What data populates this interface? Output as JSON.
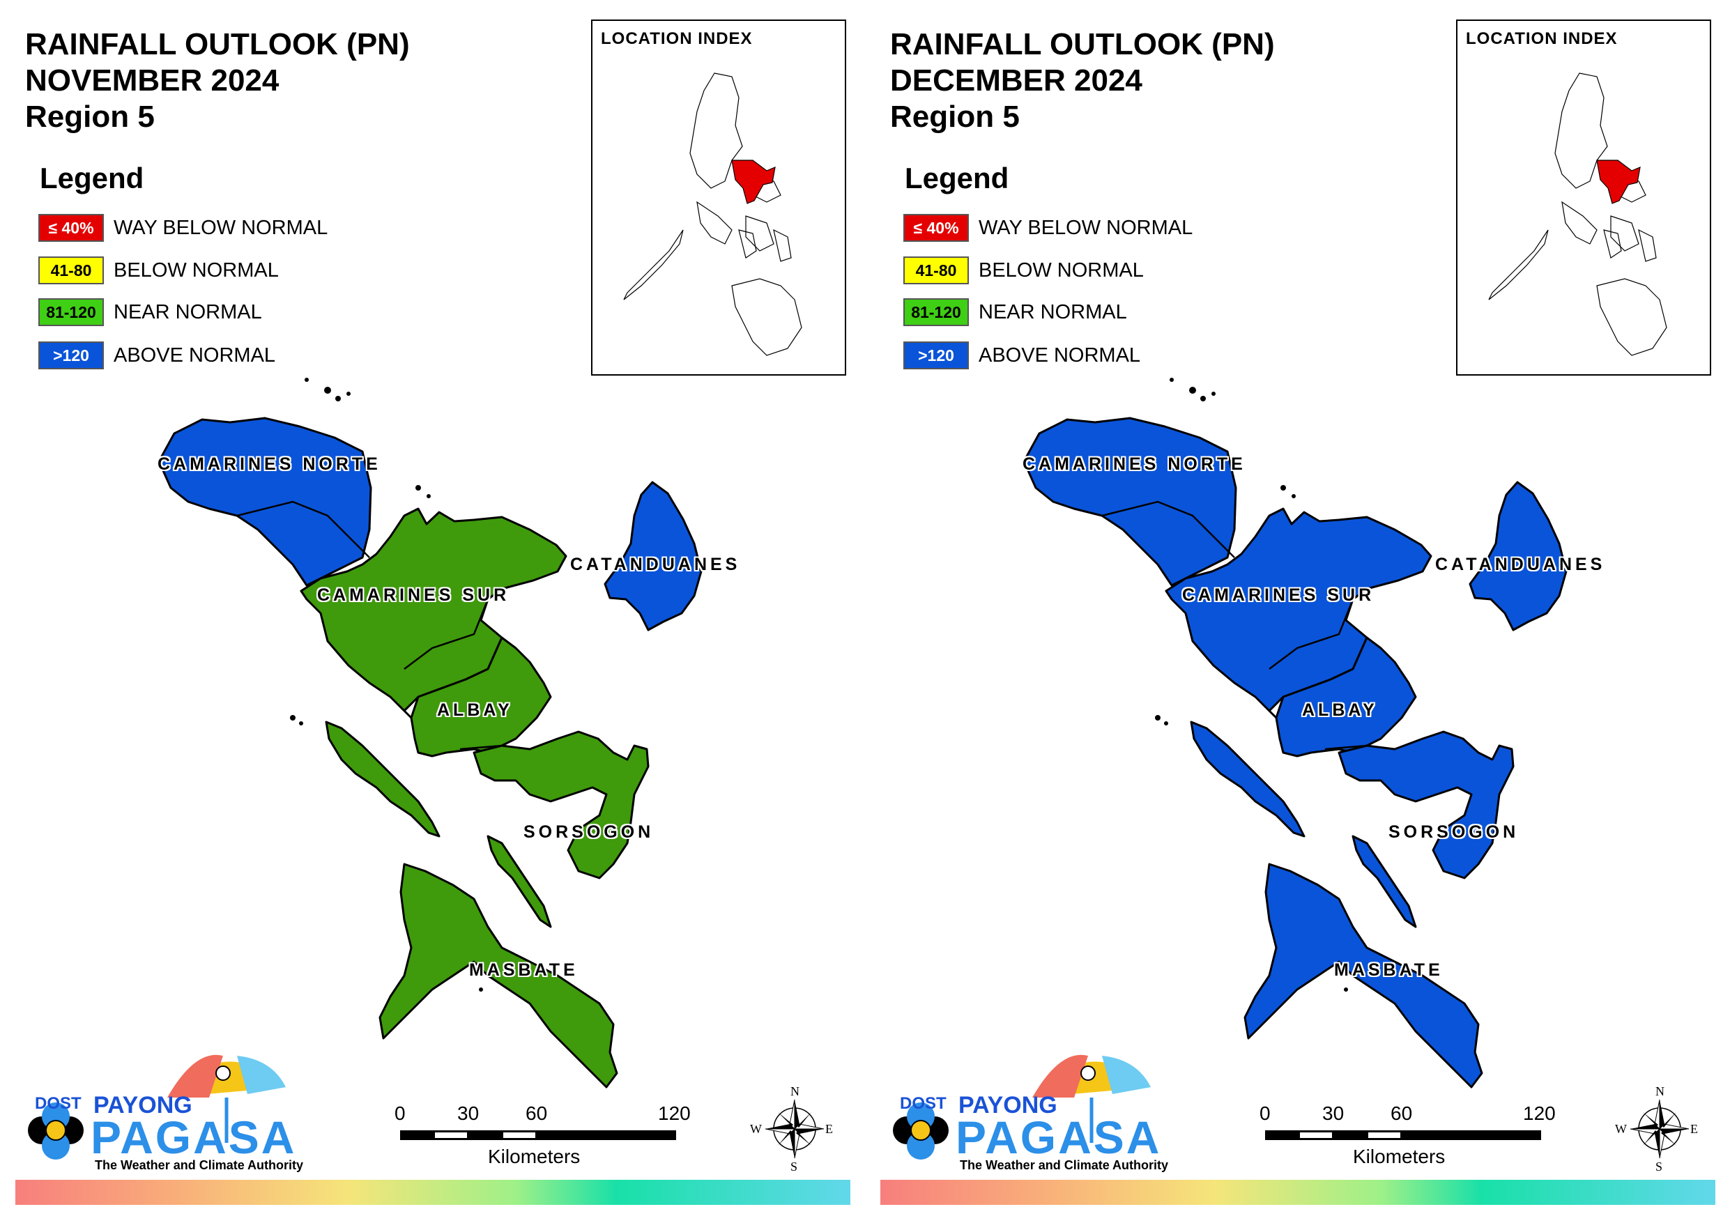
{
  "panels": [
    {
      "title": [
        "RAINFALL OUTLOOK (PN)",
        "NOVEMBER 2024",
        "Region 5"
      ],
      "fill": {
        "camarines_norte": "#0a54d9",
        "camarines_sur": "#3f9a0c",
        "albay": "#3f9a0c",
        "catanduanes": "#0a54d9",
        "sorsogon": "#3f9a0c",
        "masbate": "#3f9a0c"
      }
    },
    {
      "title": [
        "RAINFALL OUTLOOK (PN)",
        "DECEMBER 2024",
        "Region 5"
      ],
      "fill": {
        "camarines_norte": "#0a54d9",
        "camarines_sur": "#0a54d9",
        "albay": "#0a54d9",
        "catanduanes": "#0a54d9",
        "sorsogon": "#0a54d9",
        "masbate": "#0a54d9"
      }
    }
  ],
  "legend": {
    "title": "Legend",
    "items": [
      {
        "code": "≤ 40%",
        "label": "WAY BELOW NORMAL",
        "color": "#e40000",
        "text_color": "#ffffff"
      },
      {
        "code": "41-80",
        "label": "BELOW NORMAL",
        "color": "#ffff00",
        "text_color": "#000000"
      },
      {
        "code": "81-120",
        "label": "NEAR NORMAL",
        "color": "#3fcf14",
        "text_color": "#000000"
      },
      {
        "code": ">120",
        "label": "ABOVE NORMAL",
        "color": "#0a54d9",
        "text_color": "#ffffff"
      }
    ]
  },
  "inset": {
    "title": "LOCATION INDEX",
    "highlight_color": "#e40000"
  },
  "provinces": {
    "camarines_norte": "CAMARINES NORTE",
    "camarines_sur": "CAMARINES SUR",
    "catanduanes": "CATANDUANES",
    "albay": "ALBAY",
    "sorsogon": "SORSOGON",
    "masbate": "MASBATE"
  },
  "scale": {
    "ticks": [
      "0",
      "30",
      "60",
      "120"
    ],
    "unit": "Kilometers"
  },
  "compass": {
    "n": "N",
    "e": "E",
    "s": "S",
    "w": "W"
  },
  "logo": {
    "dost": "DOST",
    "payong": "PAYONG",
    "pagasa": "PAGASA",
    "tagline": "The Weather and Climate Authority"
  }
}
